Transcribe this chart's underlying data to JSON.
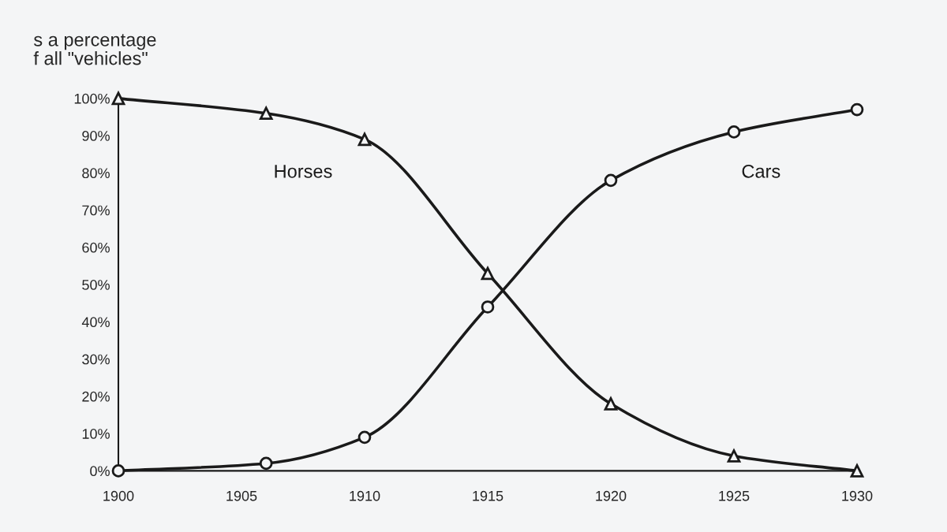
{
  "chart_data": {
    "type": "line",
    "ylabel": "s a percentage\nf all \"vehicles\"",
    "x": [
      1900,
      1906,
      1910,
      1915,
      1920,
      1925,
      1930
    ],
    "series": [
      {
        "name": "Horses",
        "color": "#1a1a1a",
        "marker": "triangle",
        "values": [
          100,
          96,
          89,
          53,
          18,
          4,
          0
        ]
      },
      {
        "name": "Cars",
        "color": "#1a1a1a",
        "marker": "circle",
        "values": [
          0,
          2,
          9,
          44,
          78,
          91,
          97
        ]
      }
    ],
    "xlim": [
      1900,
      1930
    ],
    "xticks": [
      1900,
      1905,
      1910,
      1915,
      1920,
      1925,
      1930
    ],
    "ylim": [
      0,
      100
    ],
    "yticks": [
      {
        "value": 0,
        "label": "0%"
      },
      {
        "value": 10,
        "label": "10%"
      },
      {
        "value": 20,
        "label": "20%"
      },
      {
        "value": 30,
        "label": "30%"
      },
      {
        "value": 40,
        "label": "40%"
      },
      {
        "value": 50,
        "label": "50%"
      },
      {
        "value": 60,
        "label": "60%"
      },
      {
        "value": 70,
        "label": "70%"
      },
      {
        "value": 80,
        "label": "80%"
      },
      {
        "value": 90,
        "label": "90%"
      },
      {
        "value": 100,
        "label": "100%"
      }
    ],
    "grid": false,
    "legend": false,
    "line_style": "solid"
  }
}
